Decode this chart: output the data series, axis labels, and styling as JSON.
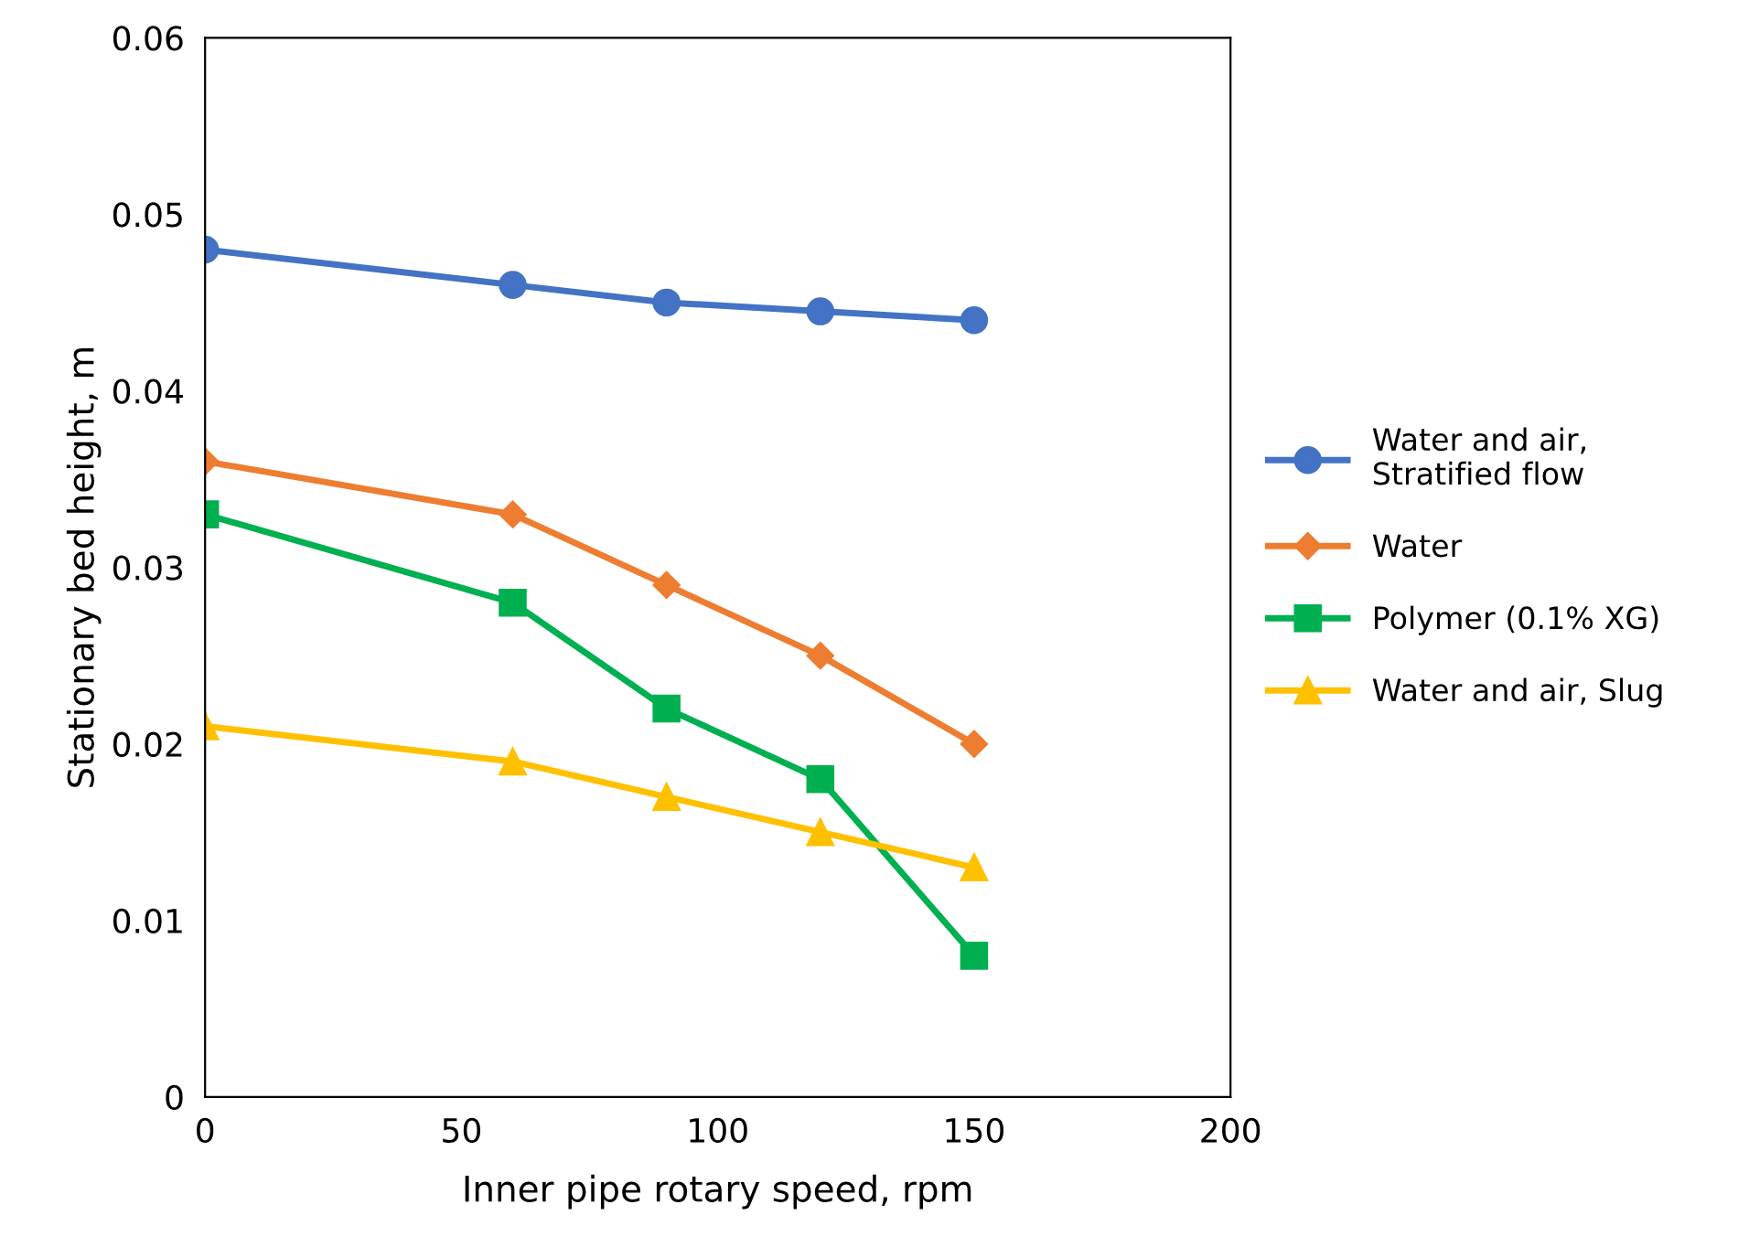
{
  "chart_data": {
    "type": "line",
    "xlabel": "Inner pipe rotary speed, rpm",
    "ylabel": "Stationary bed height, m",
    "x": [
      0,
      60,
      90,
      120,
      150
    ],
    "series": [
      {
        "name": "Water and air, Stratified flow",
        "color": "#4472c4",
        "marker": "circle",
        "values": [
          0.048,
          0.046,
          0.045,
          0.0445,
          0.044
        ]
      },
      {
        "name": "Water",
        "color": "#ed7d31",
        "marker": "diamond",
        "values": [
          0.036,
          0.033,
          0.029,
          0.025,
          0.02
        ]
      },
      {
        "name": "Polymer (0.1% XG)",
        "color": "#00b050",
        "marker": "square",
        "values": [
          0.033,
          0.028,
          0.022,
          0.018,
          0.008
        ]
      },
      {
        "name": "Water and air, Slug",
        "color": "#ffc000",
        "marker": "triangle",
        "values": [
          0.021,
          0.019,
          0.017,
          0.015,
          0.013
        ]
      }
    ],
    "xlim": [
      0,
      200
    ],
    "xticks": [
      0,
      50,
      100,
      150,
      200
    ],
    "ylim": [
      0,
      0.06
    ],
    "yticks": [
      0,
      0.01,
      0.02,
      0.03,
      0.04,
      0.05,
      0.06
    ],
    "grid": false,
    "legend": "right",
    "line_style": "solid"
  }
}
